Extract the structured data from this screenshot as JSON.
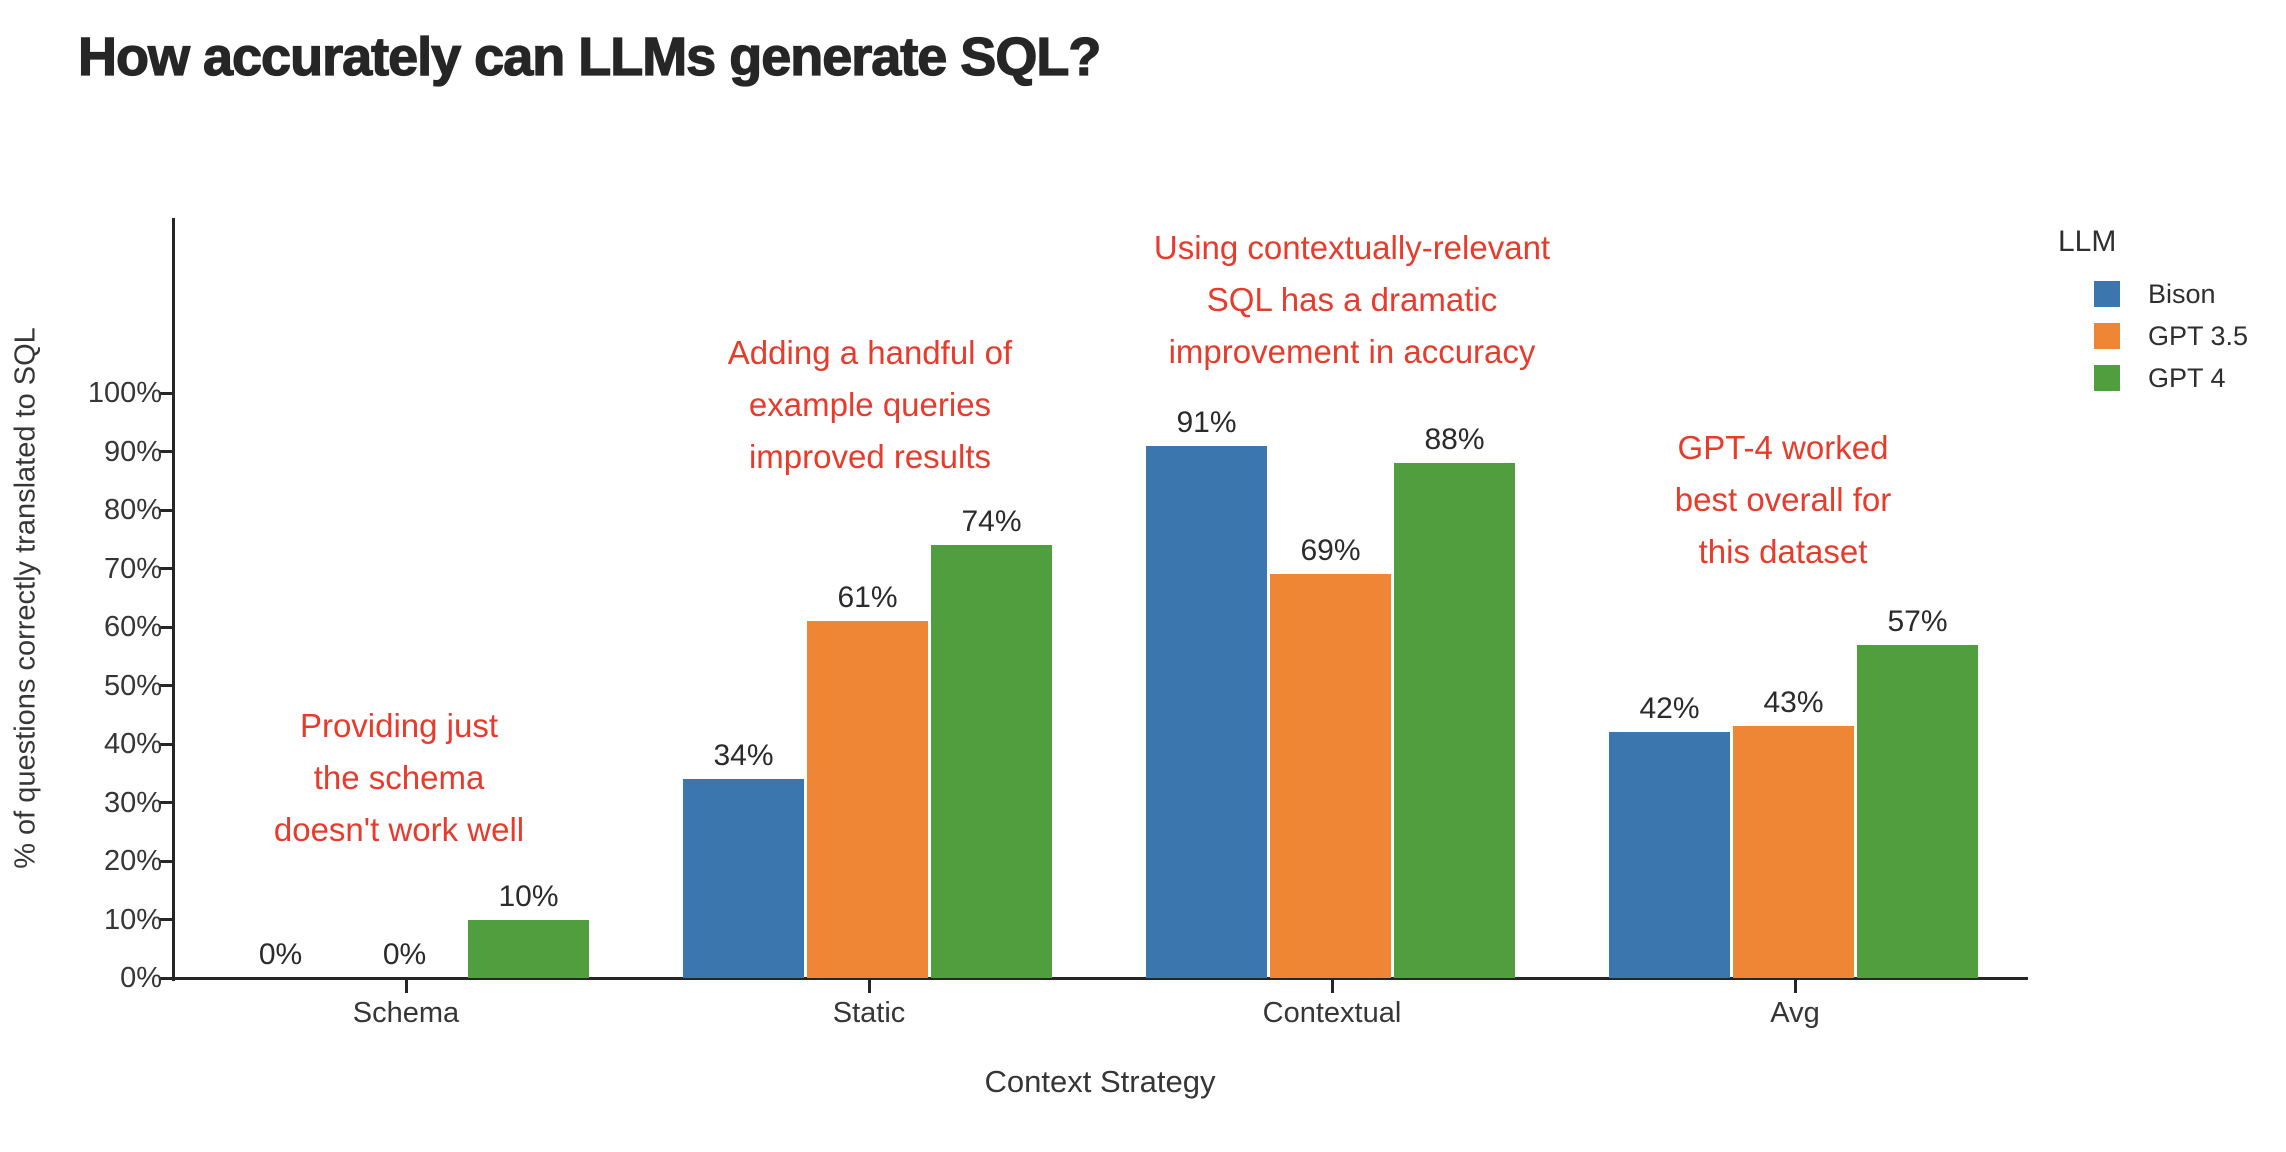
{
  "title": "How accurately can LLMs generate SQL?",
  "chart_data": {
    "type": "bar",
    "title": "How accurately can LLMs generate SQL?",
    "categories": [
      "Schema",
      "Static",
      "Contextual",
      "Avg"
    ],
    "series": [
      {
        "name": "Bison",
        "color": "#3B76AF",
        "values": [
          0,
          34,
          91,
          42
        ]
      },
      {
        "name": "GPT 3.5",
        "color": "#EF8636",
        "values": [
          0,
          61,
          69,
          43
        ]
      },
      {
        "name": "GPT 4",
        "color": "#519E3E",
        "values": [
          10,
          74,
          88,
          57
        ]
      }
    ],
    "bar_value_labels": [
      [
        "0%",
        "34%",
        "91%",
        "42%"
      ],
      [
        "0%",
        "61%",
        "69%",
        "43%"
      ],
      [
        "10%",
        "74%",
        "88%",
        "57%"
      ]
    ],
    "xlabel": "Context Strategy",
    "ylabel": "% of questions correctly translated to SQL",
    "ylim": [
      0,
      130
    ],
    "yticks": [
      "0%",
      "10%",
      "20%",
      "30%",
      "40%",
      "50%",
      "60%",
      "70%",
      "80%",
      "90%",
      "100%"
    ],
    "ytick_values": [
      0,
      10,
      20,
      30,
      40,
      50,
      60,
      70,
      80,
      90,
      100
    ],
    "grid": false,
    "legend": {
      "title": "LLM",
      "position": "top-right"
    },
    "annotation_color": "#E73B2C",
    "annotations": [
      {
        "text": "Providing just\nthe schema\ndoesn't work well"
      },
      {
        "text": "Adding a handful of\nexample queries\nimproved results"
      },
      {
        "text": "Using contextually-relevant\nSQL has a dramatic\nimprovement in accuracy"
      },
      {
        "text": "GPT-4 worked\nbest overall for\nthis dataset"
      }
    ]
  }
}
